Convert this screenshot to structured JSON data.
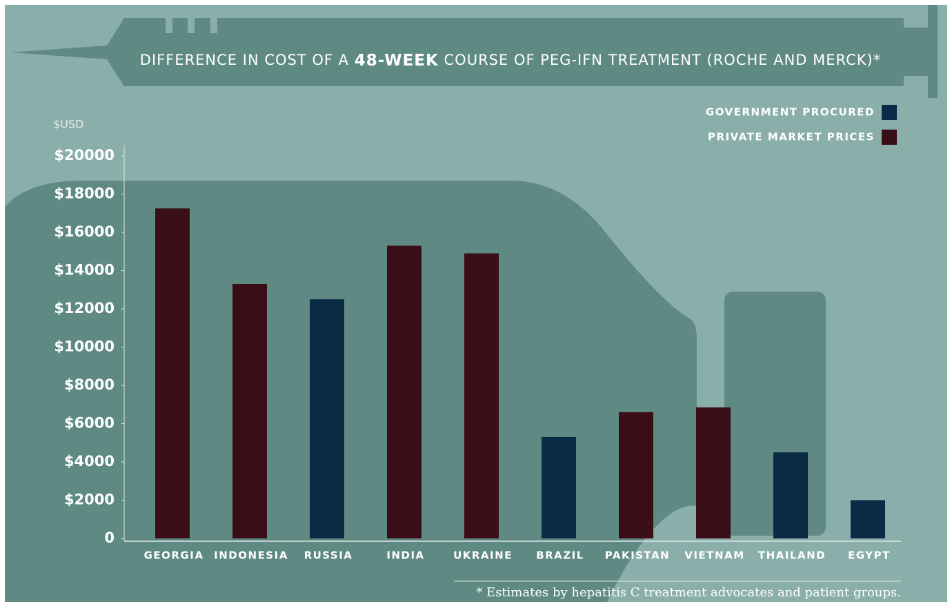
{
  "chart_data": {
    "type": "bar",
    "title": [
      "DIFFERENCE IN COST OF A ",
      "48-WEEK",
      " COURSE OF PEG-IFN TREATMENT (ROCHE AND MERCK)*"
    ],
    "y_label": "$USD",
    "footnote": "* Estimates by hepatitis C treatment advocates and patient groups.",
    "categories": [
      "GEORGIA",
      "INDONESIA",
      "RUSSIA",
      "INDIA",
      "UKRAINE",
      "BRAZIL",
      "PAKISTAN",
      "VIETNAM",
      "THAILAND",
      "EGYPT"
    ],
    "series": [
      {
        "name": "GOVERNMENT PROCURED",
        "color": "#0b2a45",
        "values": [
          null,
          null,
          12500,
          null,
          null,
          5300,
          null,
          null,
          4500,
          2000
        ]
      },
      {
        "name": "PRIVATE MARKET PRICES",
        "color": "#3a0e16",
        "values": [
          17250,
          13300,
          null,
          15300,
          14900,
          null,
          6600,
          6850,
          null,
          null
        ]
      }
    ],
    "ylim": [
      0,
      20000
    ],
    "yticks": [
      0,
      {
        "value": 2000,
        "label": "$2000"
      },
      {
        "value": 4000,
        "label": "$4000"
      },
      {
        "value": 6000,
        "label": "$6000"
      },
      {
        "value": 8000,
        "label": "$8000"
      },
      {
        "value": 10000,
        "label": "$10000"
      },
      {
        "value": 12000,
        "label": "$12000"
      },
      {
        "value": 14000,
        "label": "$14000"
      },
      {
        "value": 16000,
        "label": "$16000"
      },
      {
        "value": 18000,
        "label": "$18000"
      },
      {
        "value": 20000,
        "label": "$20000"
      }
    ],
    "legend": "top-right",
    "grid": false
  }
}
